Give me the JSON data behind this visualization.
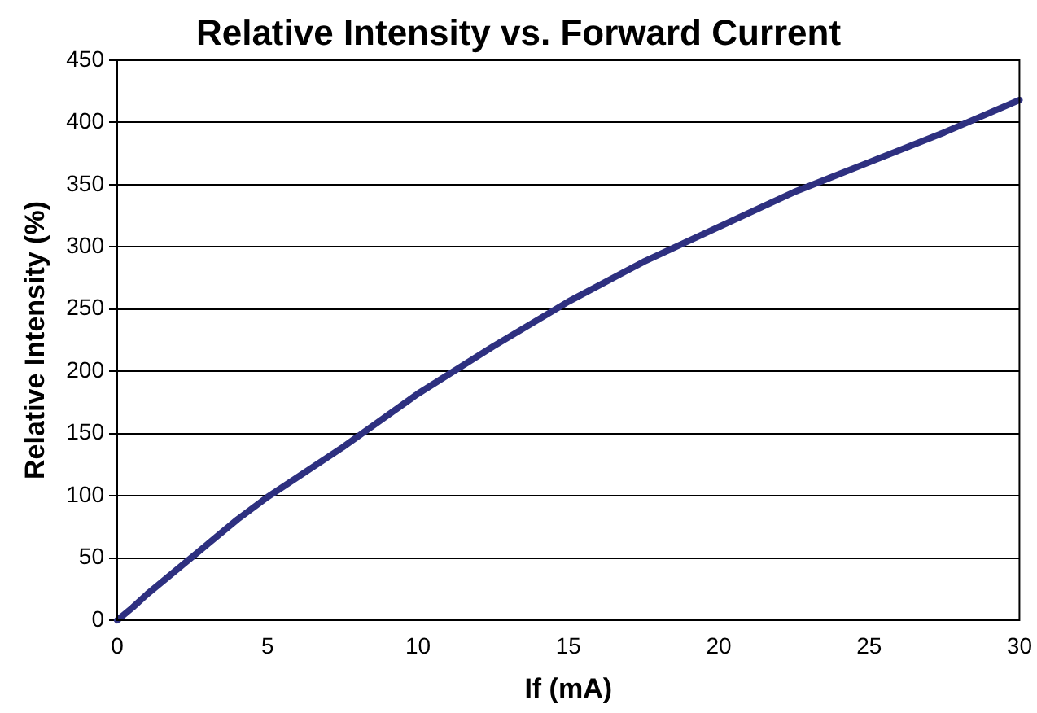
{
  "chart_data": {
    "type": "line",
    "title": "Relative Intensity vs. Forward Current",
    "xlabel": "If (mA)",
    "ylabel": "Relative Intensity (%)",
    "x": [
      0,
      0.5,
      1,
      2,
      3,
      4,
      5,
      7.5,
      10,
      12.5,
      15,
      17.5,
      20,
      22.5,
      25,
      27.5,
      30
    ],
    "series": [
      {
        "color": "#2e3080",
        "values": [
          0,
          10,
          21,
          41,
          61,
          81,
          99,
          139,
          182,
          220,
          256,
          288,
          316,
          344,
          368,
          392,
          418
        ]
      }
    ],
    "xlim": [
      0,
      30
    ],
    "xticks": [
      0,
      5,
      10,
      15,
      20,
      25,
      30
    ],
    "ylim": [
      0,
      450
    ],
    "yticks": [
      0,
      50,
      100,
      150,
      200,
      250,
      300,
      350,
      400,
      450
    ],
    "grid": "y",
    "legend": false,
    "marker": "none",
    "line_style": "solid"
  }
}
